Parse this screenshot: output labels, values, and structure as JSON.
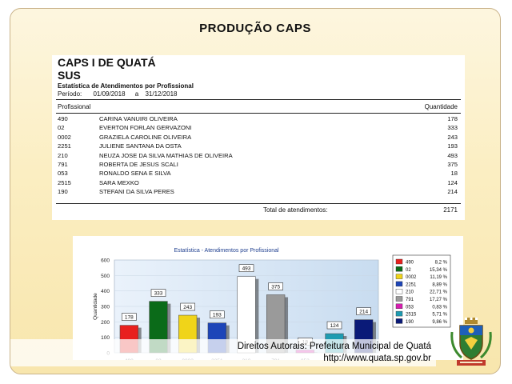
{
  "slide": {
    "title": "PRODUÇÃO CAPS",
    "copyright": "Direitos Autorais: Prefeitura Municipal de Quatá",
    "url": "http://www.quata.sp.gov.br"
  },
  "report": {
    "heading": "CAPS I DE QUATÁ",
    "subheading": "SUS",
    "subtitle": "Estatística de Atendimentos por Profissional",
    "period_label": "Período:",
    "period_start": "01/09/2018",
    "period_sep": "a",
    "period_end": "31/12/2018",
    "col_profissional": "Profissional",
    "col_quantidade": "Quantidade",
    "rows": [
      {
        "code": "490",
        "name": "CARINA VANUIRI OLIVEIRA",
        "qty": "178"
      },
      {
        "code": "02",
        "name": "EVERTON FORLAN GERVAZONI",
        "qty": "333"
      },
      {
        "code": "0002",
        "name": "GRAZIELA CAROLINE OLIVEIRA",
        "qty": "243"
      },
      {
        "code": "2251",
        "name": "JULIENE SANTANA DA OSTA",
        "qty": "193"
      },
      {
        "code": "210",
        "name": "NEUZA JOSE DA SILVA MATHIAS DE OLIVEIRA",
        "qty": "493"
      },
      {
        "code": "791",
        "name": "ROBERTA DE JESUS SCALI",
        "qty": "375"
      },
      {
        "code": "053",
        "name": "RONALDO SENA E SILVA",
        "qty": "18"
      },
      {
        "code": "2515",
        "name": "SARA MEXKO",
        "qty": "124"
      },
      {
        "code": "190",
        "name": "STEFANI DA SILVA PERES",
        "qty": "214"
      }
    ],
    "total_label": "Total de atendimentos:",
    "total_value": "2171"
  },
  "chart_data": {
    "type": "bar",
    "title": "Estatística - Atendimentos por Profissional",
    "ylabel": "Quantidade",
    "ylim": [
      0,
      600
    ],
    "yticks": [
      "0",
      "100",
      "200",
      "300",
      "400",
      "500",
      "600"
    ],
    "categories": [
      "490",
      "02",
      "0002",
      "2251",
      "210",
      "791",
      "053",
      "2515",
      "190"
    ],
    "values": [
      178,
      333,
      243,
      193,
      493,
      375,
      18,
      124,
      214
    ],
    "value_labels": [
      "178",
      "333",
      "243",
      "193",
      "493",
      "375",
      "18",
      "124",
      "214"
    ],
    "colors": [
      "#e8201e",
      "#0b6b19",
      "#f0d419",
      "#1d45b8",
      "#ffffff",
      "#9a9a9a",
      "#d61fb0",
      "#1e9bb1",
      "#0a1a78"
    ],
    "legend_position": "right",
    "legend": [
      {
        "code": "490",
        "pct": "8,2 %"
      },
      {
        "code": "02",
        "pct": "15,34 %"
      },
      {
        "code": "0002",
        "pct": "11,19 %"
      },
      {
        "code": "2251",
        "pct": "8,89 %"
      },
      {
        "code": "210",
        "pct": "22,71 %"
      },
      {
        "code": "791",
        "pct": "17,27 %"
      },
      {
        "code": "053",
        "pct": "0,83 %"
      },
      {
        "code": "2515",
        "pct": "5,71 %"
      },
      {
        "code": "190",
        "pct": "9,86 %"
      }
    ]
  },
  "icons": {
    "crest": "municipal-coat-of-arms-icon"
  }
}
